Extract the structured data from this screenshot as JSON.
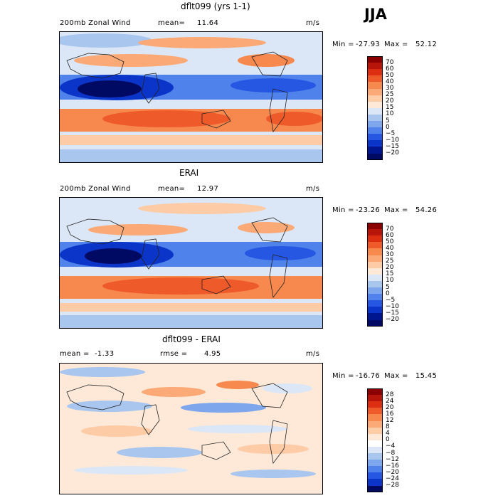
{
  "season": "JJA",
  "panels": [
    {
      "title": "dflt099 (yrs 1-1)",
      "left_label": "200mb Zonal Wind",
      "mean_label": "mean=",
      "mean_value": "11.64",
      "units": "m/s",
      "min_label": "Min =",
      "min_value": "-27.93",
      "max_label": "Max =",
      "max_value": "52.12",
      "legend_labels": [
        "70",
        "60",
        "50",
        "40",
        "30",
        "25",
        "20",
        "15",
        "10",
        "5",
        "0",
        "−5",
        "−10",
        "−15",
        "−20"
      ],
      "legend_colors": [
        "#8b0000",
        "#b71509",
        "#dc2f12",
        "#ef5a2a",
        "#f7884e",
        "#fbaa77",
        "#fdcca7",
        "#fee9d8",
        "#dbe7f6",
        "#a9c6ef",
        "#7ea6ec",
        "#4f82ea",
        "#2557e3",
        "#0a35c8",
        "#00168f",
        "#000a63"
      ]
    },
    {
      "title": "ERAI",
      "left_label": "200mb Zonal Wind",
      "mean_label": "mean=",
      "mean_value": "12.97",
      "units": "m/s",
      "min_label": "Min =",
      "min_value": "-23.26",
      "max_label": "Max =",
      "max_value": "54.26",
      "legend_labels": [
        "70",
        "60",
        "50",
        "40",
        "30",
        "25",
        "20",
        "15",
        "10",
        "5",
        "0",
        "−5",
        "−10",
        "−15",
        "−20"
      ],
      "legend_colors": [
        "#8b0000",
        "#b71509",
        "#dc2f12",
        "#ef5a2a",
        "#f7884e",
        "#fbaa77",
        "#fdcca7",
        "#fee9d8",
        "#dbe7f6",
        "#a9c6ef",
        "#7ea6ec",
        "#4f82ea",
        "#2557e3",
        "#0a35c8",
        "#00168f",
        "#000a63"
      ]
    },
    {
      "title": "dflt099 - ERAI",
      "left_label": "mean =",
      "left_value": "-1.33",
      "mean_label": "rmse =",
      "mean_value": "4.95",
      "units": "m/s",
      "min_label": "Min =",
      "min_value": "-16.76",
      "max_label": "Max =",
      "max_value": "15.45",
      "legend_labels": [
        "28",
        "24",
        "20",
        "16",
        "12",
        "8",
        "4",
        "0",
        "−4",
        "−8",
        "−12",
        "−16",
        "−20",
        "−24",
        "−28"
      ],
      "legend_colors": [
        "#8b0000",
        "#b71509",
        "#dc2f12",
        "#ef5a2a",
        "#f7884e",
        "#fbaa77",
        "#fdcca7",
        "#fee9d8",
        "#ffffff",
        "#dbe7f6",
        "#a9c6ef",
        "#7ea6ec",
        "#4f82ea",
        "#2557e3",
        "#0a35c8",
        "#000a63"
      ]
    }
  ],
  "chart_data": [
    {
      "type": "heatmap",
      "title": "dflt099 (yrs 1-1)",
      "variable": "200mb Zonal Wind",
      "units": "m/s",
      "mean": 11.64,
      "min": -27.93,
      "max": 52.12,
      "levels": [
        -20,
        -15,
        -10,
        -5,
        0,
        5,
        10,
        15,
        20,
        25,
        30,
        40,
        50,
        60,
        70
      ]
    },
    {
      "type": "heatmap",
      "title": "ERAI",
      "variable": "200mb Zonal Wind",
      "units": "m/s",
      "mean": 12.97,
      "min": -23.26,
      "max": 54.26,
      "levels": [
        -20,
        -15,
        -10,
        -5,
        0,
        5,
        10,
        15,
        20,
        25,
        30,
        40,
        50,
        60,
        70
      ]
    },
    {
      "type": "heatmap",
      "title": "dflt099 - ERAI",
      "units": "m/s",
      "mean": -1.33,
      "rmse": 4.95,
      "min": -16.76,
      "max": 15.45,
      "levels": [
        -28,
        -24,
        -20,
        -16,
        -12,
        -8,
        -4,
        0,
        4,
        8,
        12,
        16,
        20,
        24,
        28
      ]
    }
  ]
}
